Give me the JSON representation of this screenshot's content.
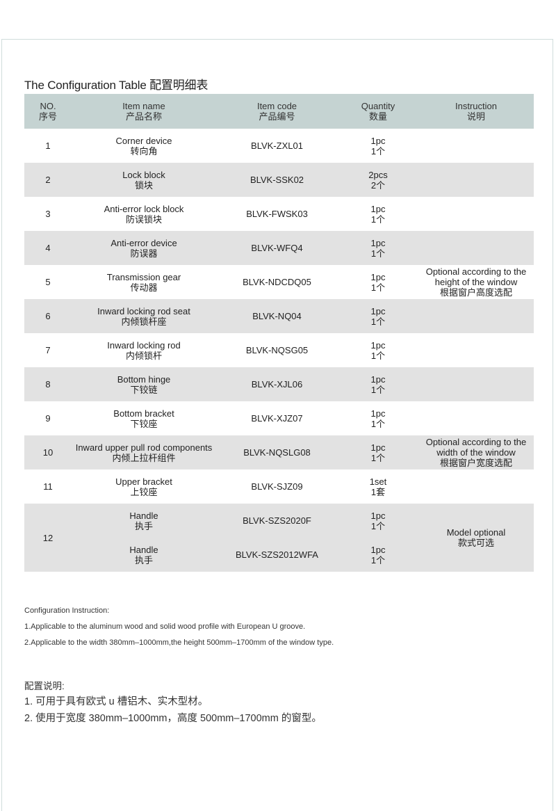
{
  "title": "The Configuration Table  配置明细表",
  "headers": [
    {
      "en": "NO.",
      "cn": "序号"
    },
    {
      "en": "Item name",
      "cn": "产品名称"
    },
    {
      "en": "Item code",
      "cn": "产品编号"
    },
    {
      "en": "Quantity",
      "cn": "数量"
    },
    {
      "en": "Instruction",
      "cn": "说明"
    }
  ],
  "rows": [
    {
      "no": "1",
      "name_en": "Corner device",
      "name_cn": "转向角",
      "code": "BLVK-ZXL01",
      "qty_en": "1pc",
      "qty_cn": "1个",
      "instruction": []
    },
    {
      "no": "2",
      "name_en": "Lock block",
      "name_cn": "锁块",
      "code": "BLVK-SSK02",
      "qty_en": "2pcs",
      "qty_cn": "2个",
      "instruction": []
    },
    {
      "no": "3",
      "name_en": "Anti-error lock block",
      "name_cn": "防误锁块",
      "code": "BLVK-FWSK03",
      "qty_en": "1pc",
      "qty_cn": "1个",
      "instruction": []
    },
    {
      "no": "4",
      "name_en": "Anti-error device",
      "name_cn": "防误器",
      "code": "BLVK-WFQ4",
      "qty_en": "1pc",
      "qty_cn": "1个",
      "instruction": []
    },
    {
      "no": "5",
      "name_en": "Transmission gear",
      "name_cn": "传动器",
      "code": "BLVK-NDCDQ05",
      "qty_en": "1pc",
      "qty_cn": "1个",
      "instruction": [
        "Optional according to the",
        "height of the window",
        "根据窗户高度选配"
      ]
    },
    {
      "no": "6",
      "name_en": "Inward locking rod seat",
      "name_cn": "内倾锁杆座",
      "code": "BLVK-NQ04",
      "qty_en": "1pc",
      "qty_cn": "1个",
      "instruction": []
    },
    {
      "no": "7",
      "name_en": "Inward locking rod",
      "name_cn": "内倾锁杆",
      "code": "BLVK-NQSG05",
      "qty_en": "1pc",
      "qty_cn": "1个",
      "instruction": []
    },
    {
      "no": "8",
      "name_en": "Bottom hinge",
      "name_cn": "下铰链",
      "code": "BLVK-XJL06",
      "qty_en": "1pc",
      "qty_cn": "1个",
      "instruction": []
    },
    {
      "no": "9",
      "name_en": "Bottom bracket",
      "name_cn": "下铰座",
      "code": "BLVK-XJZ07",
      "qty_en": "1pc",
      "qty_cn": "1个",
      "instruction": []
    },
    {
      "no": "10",
      "name_en": "Inward upper pull rod components",
      "name_cn": "内倾上拉杆组件",
      "code": "BLVK-NQSLG08",
      "qty_en": "1pc",
      "qty_cn": "1个",
      "instruction": [
        "Optional according to the",
        "width of the window",
        "根据窗户宽度选配"
      ]
    },
    {
      "no": "11",
      "name_en": "Upper bracket",
      "name_cn": "上铰座",
      "code": "BLVK-SJZ09",
      "qty_en": "1set",
      "qty_cn": "1套",
      "instruction": []
    }
  ],
  "row12": {
    "no": "12",
    "items": [
      {
        "name_en": "Handle",
        "name_cn": "执手",
        "code": "BLVK-SZS2020F",
        "qty_en": "1pc",
        "qty_cn": "1个"
      },
      {
        "name_en": "Handle",
        "name_cn": "执手",
        "code": "BLVK-SZS2012WFA",
        "qty_en": "1pc",
        "qty_cn": "1个"
      }
    ],
    "instruction": [
      "Model optional",
      "款式可选"
    ]
  },
  "instructions_en": {
    "heading": "Configuration Instruction:",
    "items": [
      "1.Applicable to the aluminum wood and solid wood profile with European U groove.",
      "2.Applicable to the width 380mm–1000mm,the height 500mm–1700mm of the window type."
    ]
  },
  "instructions_cn": {
    "heading": "配置说明:",
    "items": [
      "1. 可用于具有欧式 u 槽铝木、实木型材。",
      "2. 使用于宽度 380mm–1000mm，高度 500mm–1700mm 的窗型。"
    ]
  },
  "colors": {
    "header_bg": "#c5d3d2",
    "alt_row_bg": "#e2e2e2",
    "frame": "#cfdcdb"
  }
}
